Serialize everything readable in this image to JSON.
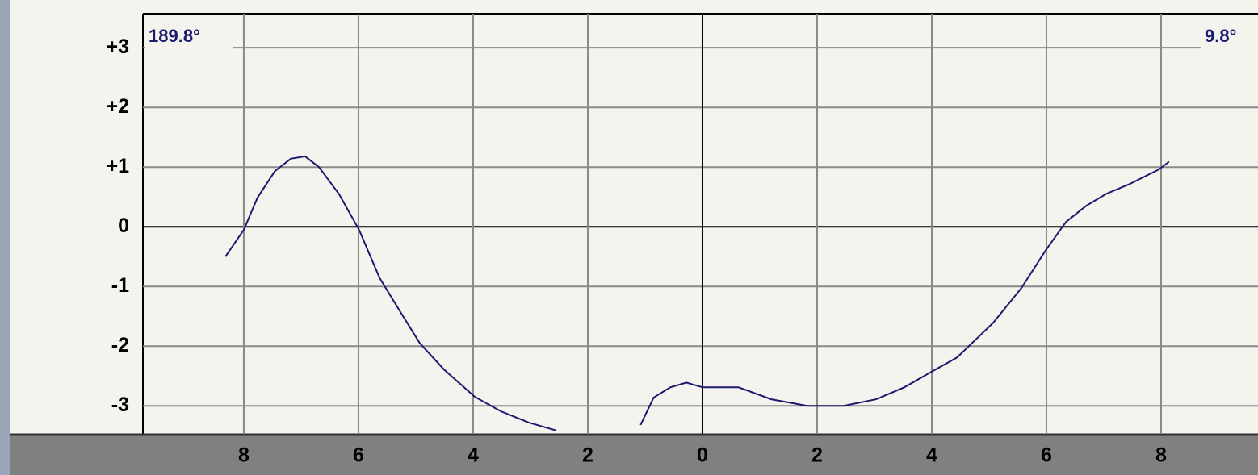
{
  "chart_data": {
    "type": "line",
    "annotations": [
      "189.8°",
      "9.8°"
    ],
    "xlim": [
      -9.76,
      9.69
    ],
    "ylim": [
      -3.47,
      3.57
    ],
    "xticks": [
      {
        "value": -8,
        "label": "8"
      },
      {
        "value": -6,
        "label": "6"
      },
      {
        "value": -4,
        "label": "4"
      },
      {
        "value": -2,
        "label": "2"
      },
      0,
      2,
      4,
      6,
      8
    ],
    "yticks": [
      {
        "value": 3,
        "label": "+3"
      },
      {
        "value": 2,
        "label": "+2"
      },
      {
        "value": 1,
        "label": "+1"
      },
      0,
      -1,
      -2,
      -3
    ],
    "grid": true,
    "series": [
      {
        "color": "#1a1a6e",
        "x": [
          -8.32,
          -8.0,
          -7.76,
          -7.46,
          -7.18,
          -6.93,
          -6.69,
          -6.34,
          -5.99,
          -5.63,
          -5.28,
          -4.93,
          -4.51,
          -3.97,
          -3.52,
          -3.03,
          -2.56,
          null,
          -1.08,
          -0.85,
          -0.56,
          -0.28,
          0,
          0.63,
          1.2,
          1.83,
          2.46,
          3.03,
          3.52,
          3.94,
          4.44,
          5.07,
          5.56,
          5.99,
          6.34,
          6.69,
          7.04,
          7.46,
          7.96,
          8.14
        ],
        "values": [
          -0.5,
          -0.05,
          0.49,
          0.93,
          1.14,
          1.18,
          1.0,
          0.55,
          -0.05,
          -0.86,
          -1.41,
          -1.95,
          -2.39,
          -2.85,
          -3.09,
          -3.28,
          -3.41,
          null,
          -3.32,
          -2.86,
          -2.69,
          -2.61,
          -2.69,
          -2.69,
          -2.89,
          -3.0,
          -3.0,
          -2.89,
          -2.69,
          -2.46,
          -2.19,
          -1.61,
          -1.03,
          -0.39,
          0.08,
          0.35,
          0.55,
          0.72,
          0.96,
          1.09
        ]
      }
    ]
  }
}
